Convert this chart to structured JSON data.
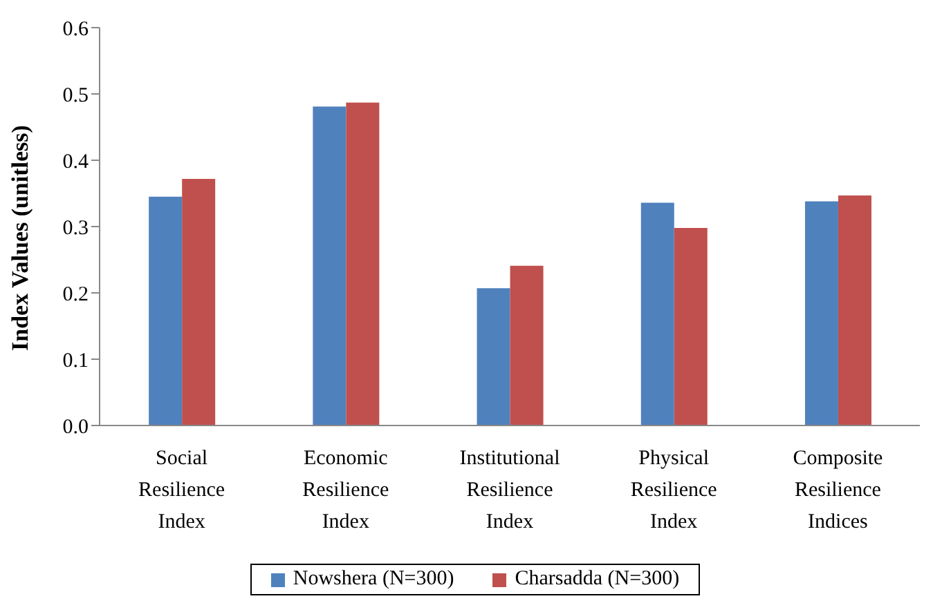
{
  "chart_data": {
    "type": "bar",
    "ylabel": "Index Values (unitless)",
    "categories": [
      "Social Resilience Index",
      "Economic Resilience Index",
      "Institutional Resilience Index",
      "Physical Resilience Index",
      "Composite Resilience Indices"
    ],
    "series": [
      {
        "name": "Nowshera (N=300)",
        "color": "#4f81bd",
        "values": [
          0.345,
          0.481,
          0.207,
          0.336,
          0.338
        ]
      },
      {
        "name": "Charsadda (N=300)",
        "color": "#c0504d",
        "values": [
          0.372,
          0.487,
          0.241,
          0.298,
          0.347
        ]
      }
    ],
    "ylim": [
      0,
      0.6
    ],
    "yticks": [
      {
        "value": 0,
        "label": "0.0"
      },
      {
        "value": 0.1,
        "label": "0.1"
      },
      {
        "value": 0.2,
        "label": "0.2"
      },
      {
        "value": 0.3,
        "label": "0.3"
      },
      {
        "value": 0.4,
        "label": "0.4"
      },
      {
        "value": 0.5,
        "label": "0.5"
      },
      {
        "value": 0.6,
        "label": "0.6"
      }
    ],
    "grid": false,
    "legend": "bottom"
  }
}
